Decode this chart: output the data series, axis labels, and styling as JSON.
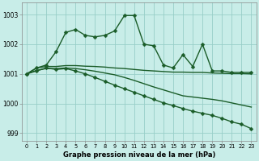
{
  "title": "Graphe pression niveau de la mer (hPa)",
  "bg_color": "#c8ede8",
  "grid_color": "#98cec8",
  "line_color": "#1a5c28",
  "xlim": [
    -0.5,
    23.5
  ],
  "ylim": [
    998.75,
    1003.4
  ],
  "yticks": [
    999,
    1000,
    1001,
    1002,
    1003
  ],
  "xticks": [
    0,
    1,
    2,
    3,
    4,
    5,
    6,
    7,
    8,
    9,
    10,
    11,
    12,
    13,
    14,
    15,
    16,
    17,
    18,
    19,
    20,
    21,
    22,
    23
  ],
  "series": [
    {
      "x": [
        0,
        1,
        2,
        3,
        4,
        5,
        6,
        7,
        8,
        9,
        10,
        11,
        12,
        13,
        14,
        15,
        16,
        17,
        18,
        19,
        20,
        21,
        22,
        23
      ],
      "y": [
        1001.0,
        1001.2,
        1001.3,
        1001.75,
        1002.4,
        1002.5,
        1002.3,
        1002.25,
        1002.3,
        1002.45,
        1002.97,
        1002.97,
        1002.0,
        1001.95,
        1001.3,
        1001.2,
        1001.65,
        1001.25,
        1002.0,
        1001.1,
        1001.1,
        1001.05,
        1001.05,
        1001.05
      ],
      "has_marker": true,
      "linewidth": 1.0
    },
    {
      "x": [
        0,
        1,
        2,
        3,
        4,
        5,
        6,
        7,
        8,
        9,
        10,
        11,
        12,
        13,
        14,
        15,
        16,
        17,
        18,
        19,
        20,
        21,
        22,
        23
      ],
      "y": [
        1001.0,
        1001.2,
        1001.25,
        1001.25,
        1001.28,
        1001.28,
        1001.26,
        1001.25,
        1001.23,
        1001.2,
        1001.18,
        1001.15,
        1001.12,
        1001.1,
        1001.08,
        1001.06,
        1001.06,
        1001.05,
        1001.05,
        1001.03,
        1001.02,
        1001.01,
        1001.01,
        1001.0
      ],
      "has_marker": false,
      "linewidth": 1.0
    },
    {
      "x": [
        0,
        1,
        2,
        3,
        4,
        5,
        6,
        7,
        8,
        9,
        10,
        11,
        12,
        13,
        14,
        15,
        16,
        17,
        18,
        19,
        20,
        21,
        22,
        23
      ],
      "y": [
        1001.0,
        1001.12,
        1001.18,
        1001.18,
        1001.2,
        1001.18,
        1001.14,
        1001.09,
        1001.03,
        1000.97,
        1000.88,
        1000.78,
        1000.67,
        1000.56,
        1000.46,
        1000.36,
        1000.26,
        1000.22,
        1000.18,
        1000.14,
        1000.09,
        1000.02,
        999.95,
        999.88
      ],
      "has_marker": false,
      "linewidth": 1.0
    },
    {
      "x": [
        0,
        1,
        2,
        3,
        4,
        5,
        6,
        7,
        8,
        9,
        10,
        11,
        12,
        13,
        14,
        15,
        16,
        17,
        18,
        19,
        20,
        21,
        22,
        23
      ],
      "y": [
        1001.0,
        1001.1,
        1001.2,
        1001.15,
        1001.18,
        1001.1,
        1001.0,
        1000.88,
        1000.75,
        1000.62,
        1000.5,
        1000.38,
        1000.26,
        1000.14,
        1000.02,
        999.93,
        999.83,
        999.74,
        999.67,
        999.6,
        999.5,
        999.38,
        999.3,
        999.15
      ],
      "has_marker": true,
      "linewidth": 1.0
    }
  ]
}
